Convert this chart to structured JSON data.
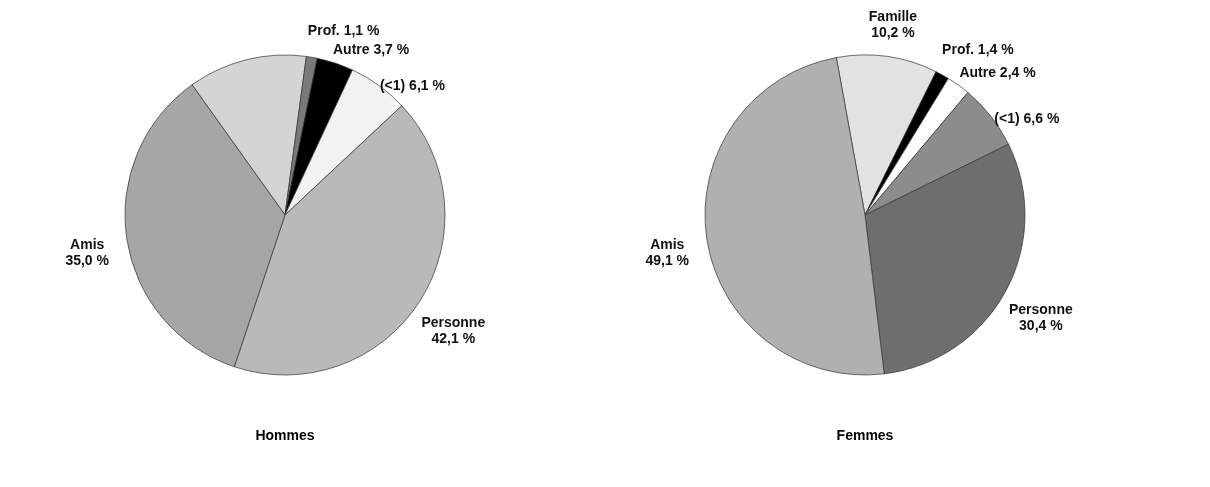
{
  "chart_data": [
    {
      "type": "pie",
      "title": "Hommes",
      "categories": [
        null,
        "Prof.",
        "Autre",
        "(<1)",
        "Personne",
        "Amis"
      ],
      "values": [
        12.0,
        1.1,
        3.7,
        6.1,
        42.1,
        35.0
      ],
      "value_labels": [
        null,
        "1,1 %",
        "3,7 %",
        "6,1 %",
        "42,1 %",
        "35,0 %"
      ],
      "colors": [
        "#d4d4d4",
        "#7a7a7a",
        "#000000",
        "#f2f2f2",
        "#b9b9b9",
        "#a6a6a6"
      ]
    },
    {
      "type": "pie",
      "title": "Femmes",
      "categories": [
        "Famille",
        "Prof.",
        "Autre",
        "(<1)",
        "Personne",
        "Amis"
      ],
      "values": [
        10.2,
        1.4,
        2.4,
        6.6,
        30.4,
        49.1
      ],
      "value_labels": [
        "10,2 %",
        "1,4 %",
        "2,4 %",
        "6,6 %",
        "30,4 %",
        "49,1 %"
      ],
      "colors": [
        "#e2e2e2",
        "#000000",
        "#ffffff",
        "#8c8c8c",
        "#6e6e6e",
        "#b0b0b0"
      ]
    }
  ]
}
